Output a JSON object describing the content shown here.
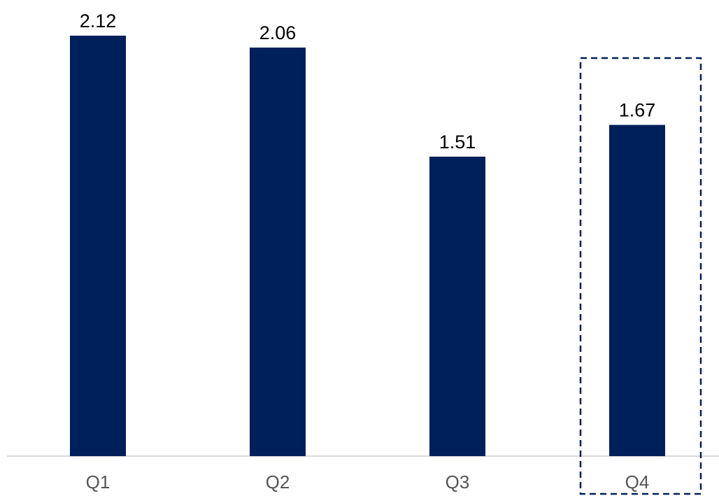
{
  "chart_data": {
    "type": "bar",
    "categories": [
      "Q1",
      "Q2",
      "Q3",
      "Q4"
    ],
    "values": [
      2.12,
      2.06,
      1.51,
      1.67
    ],
    "value_labels": [
      "2.12",
      "2.06",
      "1.51",
      "1.67"
    ],
    "title": "",
    "xlabel": "",
    "ylabel": "",
    "ylim": [
      0,
      2.2
    ],
    "grid": false,
    "legend": "none",
    "highlighted_category": "Q4",
    "colors": {
      "bar": "#00205B",
      "axis": "#d9d9d9",
      "highlight_border": "#00205B",
      "value_text": "#000000",
      "tick_text": "#555555"
    }
  }
}
